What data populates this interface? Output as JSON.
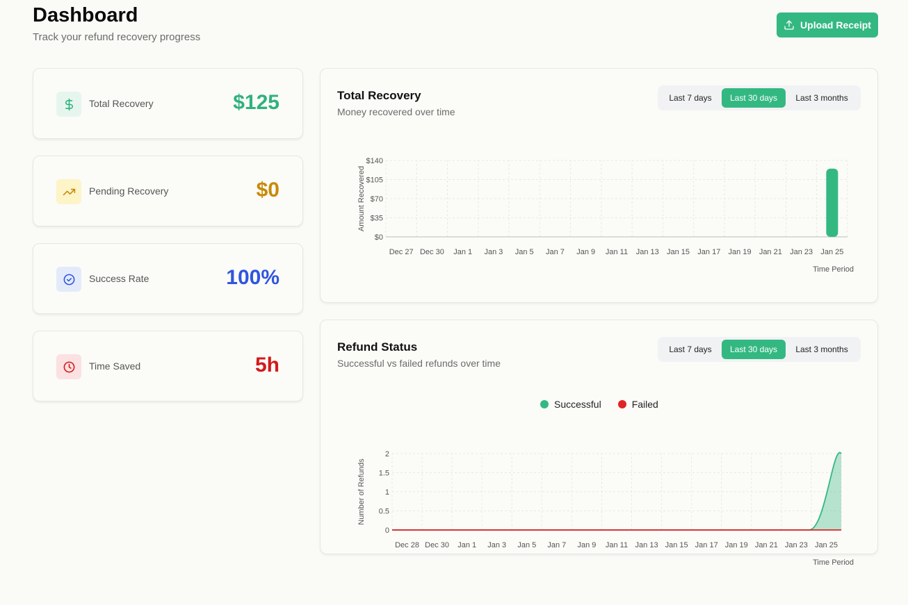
{
  "header": {
    "title": "Dashboard",
    "subtitle": "Track your refund recovery progress",
    "upload_label": "Upload Receipt"
  },
  "stats": [
    {
      "label": "Total Recovery",
      "value": "$125",
      "icon": "dollar-icon",
      "color": "#2fb27c",
      "bg": "#e6f6ee"
    },
    {
      "label": "Pending Recovery",
      "value": "$0",
      "icon": "trending-up-icon",
      "color": "#c88a06",
      "bg": "#fdf4c8"
    },
    {
      "label": "Success Rate",
      "value": "100%",
      "icon": "check-circle-icon",
      "color": "#3055e0",
      "bg": "#e3ebfb"
    },
    {
      "label": "Time Saved",
      "value": "5h",
      "icon": "clock-icon",
      "color": "#d21a1a",
      "bg": "#fbe1e1"
    }
  ],
  "ranges": [
    "Last 7 days",
    "Last 30 days",
    "Last 3 months"
  ],
  "active_range": "Last 30 days",
  "recovery_card": {
    "title": "Total Recovery",
    "subtitle": "Money recovered over time"
  },
  "status_card": {
    "title": "Refund Status",
    "subtitle": "Successful vs failed refunds over time"
  },
  "colors": {
    "accent": "#34b882",
    "failed": "#e02424"
  },
  "chart_data": [
    {
      "type": "bar",
      "title": "Total Recovery",
      "ylabel": "Amount Recovered",
      "xlabel": "Time Period",
      "ylim": [
        0,
        140
      ],
      "yticks": [
        "$0",
        "$35",
        "$70",
        "$105",
        "$140"
      ],
      "categories": [
        "Dec 27",
        "Dec 30",
        "Jan 1",
        "Jan 3",
        "Jan 5",
        "Jan 7",
        "Jan 9",
        "Jan 11",
        "Jan 13",
        "Jan 15",
        "Jan 17",
        "Jan 19",
        "Jan 21",
        "Jan 23",
        "Jan 25"
      ],
      "values": [
        0,
        0,
        0,
        0,
        0,
        0,
        0,
        0,
        0,
        0,
        0,
        0,
        0,
        0,
        125
      ],
      "grid": true
    },
    {
      "type": "area",
      "title": "Refund Status",
      "ylabel": "Number of Refunds",
      "xlabel": "Time Period",
      "ylim": [
        0,
        2
      ],
      "yticks": [
        "0",
        "0.5",
        "1",
        "1.5",
        "2"
      ],
      "categories": [
        "Dec 28",
        "Dec 30",
        "Jan 1",
        "Jan 3",
        "Jan 5",
        "Jan 7",
        "Jan 9",
        "Jan 11",
        "Jan 13",
        "Jan 15",
        "Jan 17",
        "Jan 19",
        "Jan 21",
        "Jan 23",
        "Jan 25"
      ],
      "series": [
        {
          "name": "Successful",
          "values": [
            0,
            0,
            0,
            0,
            0,
            0,
            0,
            0,
            0,
            0,
            0,
            0,
            0,
            0,
            2
          ]
        },
        {
          "name": "Failed",
          "values": [
            0,
            0,
            0,
            0,
            0,
            0,
            0,
            0,
            0,
            0,
            0,
            0,
            0,
            0,
            0
          ]
        }
      ],
      "legend": "top-center",
      "grid": true
    }
  ]
}
